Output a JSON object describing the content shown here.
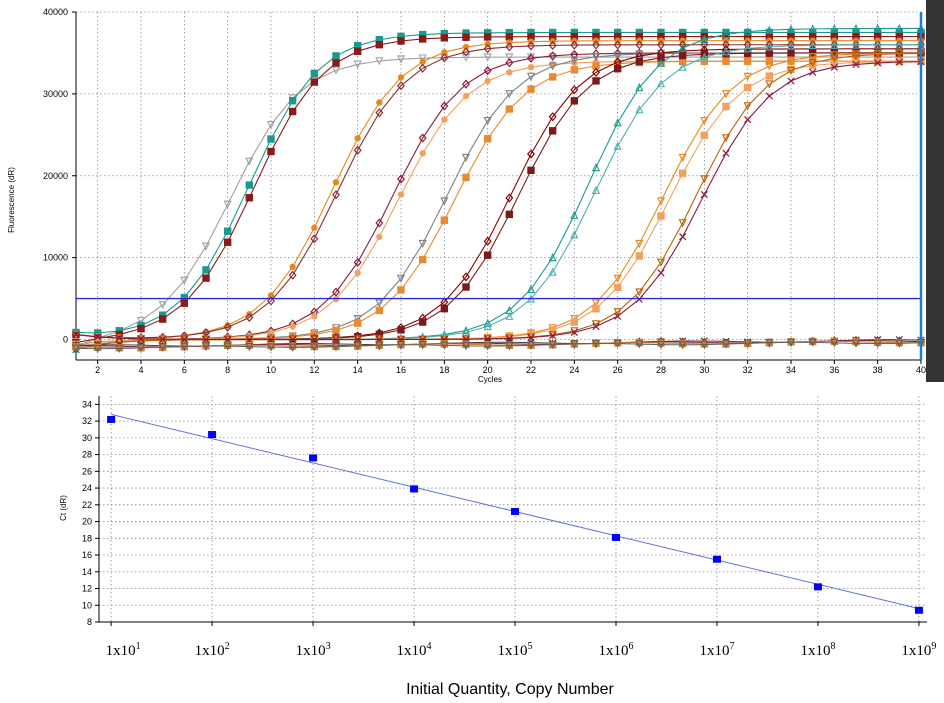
{
  "chart_data": [
    {
      "type": "line",
      "title": "",
      "xlabel": "Cycles",
      "ylabel": "Fluorescence (dR)",
      "xlim": [
        1,
        40
      ],
      "ylim": [
        -2500,
        40000
      ],
      "x_ticks": [
        2,
        4,
        6,
        8,
        10,
        12,
        14,
        16,
        18,
        20,
        22,
        24,
        26,
        28,
        30,
        32,
        34,
        36,
        38,
        40
      ],
      "y_ticks": [
        0,
        10000,
        20000,
        30000,
        40000
      ],
      "y_tick_labels": [
        "0",
        "10000",
        "20000",
        "30000",
        "40000"
      ],
      "grid": true,
      "threshold": 5000,
      "series": [
        {
          "ct": 11.0,
          "plateau": 34500,
          "color": "#a0a0a0",
          "marker": "tri-down"
        },
        {
          "ct": 12.0,
          "plateau": 37500,
          "color": "#1a9a8f",
          "marker": "square"
        },
        {
          "ct": 12.2,
          "plateau": 37000,
          "color": "#8b1a1a",
          "marker": "square"
        },
        {
          "ct": 15.8,
          "plateau": 36500,
          "color": "#e8881c",
          "marker": "circle"
        },
        {
          "ct": 16.0,
          "plateau": 36000,
          "color": "#8b2f2f",
          "marker": "diamond"
        },
        {
          "ct": 18.5,
          "plateau": 35000,
          "color": "#8b1a3a",
          "marker": "diamond"
        },
        {
          "ct": 18.7,
          "plateau": 34000,
          "color": "#f0a060",
          "marker": "circle"
        },
        {
          "ct": 21.0,
          "plateau": 35000,
          "color": "#808080",
          "marker": "tri-down"
        },
        {
          "ct": 21.3,
          "plateau": 34000,
          "color": "#e88a30",
          "marker": "square"
        },
        {
          "ct": 24.0,
          "plateau": 35500,
          "color": "#8b0000",
          "marker": "diamond"
        },
        {
          "ct": 24.3,
          "plateau": 35000,
          "color": "#7a1a1a",
          "marker": "square"
        },
        {
          "ct": 27.7,
          "plateau": 38000,
          "color": "#1a9a8f",
          "marker": "tri-up"
        },
        {
          "ct": 27.9,
          "plateau": 36000,
          "color": "#4fb0b0",
          "marker": "tri-up"
        },
        {
          "ct": 31.0,
          "plateau": 35000,
          "color": "#e8881c",
          "marker": "tri-down"
        },
        {
          "ct": 31.2,
          "plateau": 34000,
          "color": "#f0a060",
          "marker": "square"
        },
        {
          "ct": 32.5,
          "plateau": 35000,
          "color": "#c06000",
          "marker": "tri-down"
        },
        {
          "ct": 32.7,
          "plateau": 34000,
          "color": "#8b1a3a",
          "marker": "x"
        }
      ],
      "baseline_series": [
        {
          "color": "#404040",
          "marker": "x"
        },
        {
          "color": "#8b1a3a",
          "marker": "diamond"
        },
        {
          "color": "#d08030",
          "marker": "square"
        },
        {
          "color": "#606060",
          "marker": "tri-down"
        }
      ]
    },
    {
      "type": "scatter",
      "title": "",
      "xlabel": "Initial Quantity, Copy Number",
      "ylabel": "Ct (dR)",
      "x_scale": "log",
      "x_ticks": [
        10,
        100,
        1000,
        10000,
        100000,
        1000000,
        10000000,
        100000000,
        1000000000
      ],
      "x_tick_labels": [
        {
          "base": "1x10",
          "exp": "1"
        },
        {
          "base": "1x10",
          "exp": "2"
        },
        {
          "base": "1x10",
          "exp": "3"
        },
        {
          "base": "1x10",
          "exp": "4"
        },
        {
          "base": "1x10",
          "exp": "5"
        },
        {
          "base": "1x10",
          "exp": "6"
        },
        {
          "base": "1x10",
          "exp": "7"
        },
        {
          "base": "1x10",
          "exp": "8"
        },
        {
          "base": "1x10",
          "exp": "9"
        }
      ],
      "y_ticks": [
        8,
        10,
        12,
        14,
        16,
        18,
        20,
        22,
        24,
        26,
        28,
        30,
        32,
        34
      ],
      "ylim": [
        8,
        35
      ],
      "grid": true,
      "points": [
        {
          "x": 10,
          "y": 32.2
        },
        {
          "x": 100,
          "y": 30.4
        },
        {
          "x": 1000,
          "y": 27.6
        },
        {
          "x": 10000,
          "y": 23.9
        },
        {
          "x": 100000,
          "y": 21.2
        },
        {
          "x": 1000000,
          "y": 18.1
        },
        {
          "x": 10000000,
          "y": 15.5
        },
        {
          "x": 100000000,
          "y": 12.2
        },
        {
          "x": 1000000000,
          "y": 9.4
        }
      ],
      "fit_line": {
        "x_start": 10,
        "y_start": 32.8,
        "x_end": 1000000000,
        "y_end": 9.6
      },
      "point_color": "#0000ff",
      "line_color": "#6070e0"
    }
  ]
}
